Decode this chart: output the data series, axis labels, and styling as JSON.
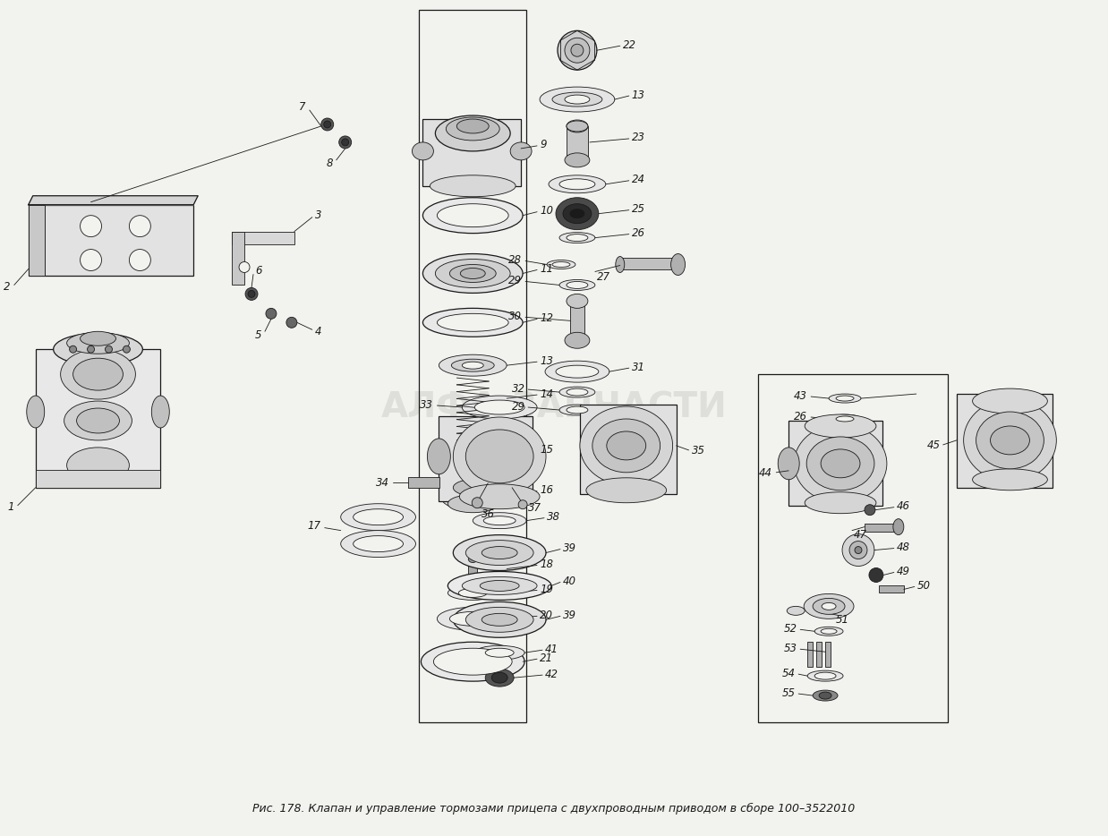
{
  "title": "Рис. 178. Клапан и управление тормозами прицепа с двухпроводным приводом в сборе 100–3522010",
  "background_color": "#f2f2ee",
  "fig_width": 12.38,
  "fig_height": 9.34,
  "watermark_text": "АЛФА-ЗАПЧАСТИ",
  "watermark_color": "#c0c0c0",
  "watermark_alpha": 0.4,
  "line_color": "#1a1a1a",
  "label_color": "#1a1a1a",
  "title_fontsize": 9.0,
  "label_fontsize": 8.5
}
